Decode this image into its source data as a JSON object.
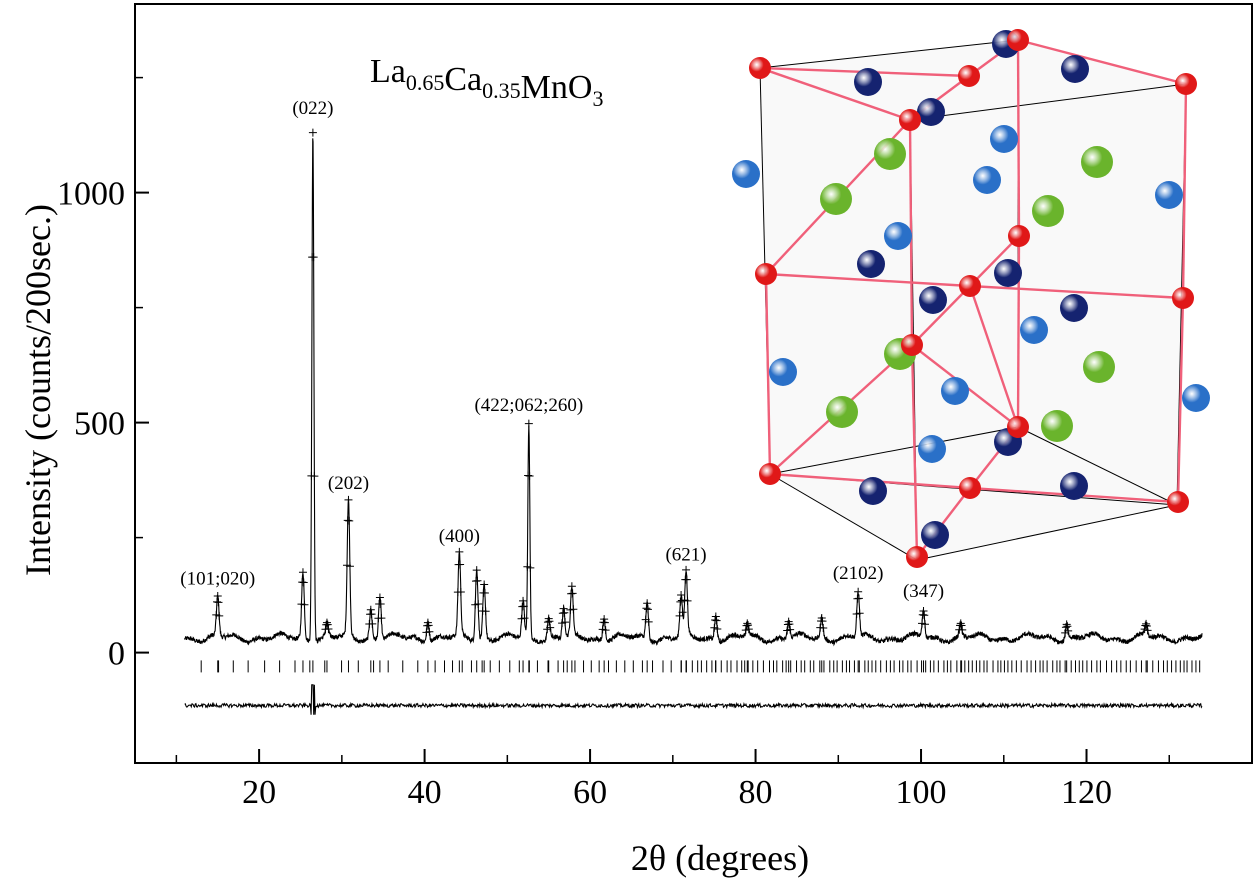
{
  "chart_data": {
    "type": "line",
    "title": "",
    "compound": {
      "parts": [
        {
          "text": "La",
          "sub": "0.65"
        },
        {
          "text": "Ca",
          "sub": "0.35"
        },
        {
          "text": "MnO",
          "sub": "3"
        }
      ]
    },
    "xlabel": "2θ (degrees)",
    "ylabel": "Intensity (counts/200sec.)",
    "xlim": [
      5,
      140
    ],
    "ylim": [
      -240,
      1410
    ],
    "xticks": [
      20,
      40,
      60,
      80,
      100,
      120
    ],
    "yticks": [
      0,
      500,
      1000
    ],
    "x_range": [
      11,
      134
    ],
    "background_level": 32,
    "peaks": [
      {
        "x": 15.0,
        "y": 118,
        "label": "(101;020)"
      },
      {
        "x": 25.3,
        "y": 175
      },
      {
        "x": 26.5,
        "y": 1140,
        "label": "(022)"
      },
      {
        "x": 28.2,
        "y": 60
      },
      {
        "x": 30.8,
        "y": 325,
        "label": "(202)"
      },
      {
        "x": 33.5,
        "y": 95
      },
      {
        "x": 34.6,
        "y": 125
      },
      {
        "x": 40.4,
        "y": 75
      },
      {
        "x": 44.2,
        "y": 210,
        "label": "(400)"
      },
      {
        "x": 46.3,
        "y": 185
      },
      {
        "x": 47.2,
        "y": 150
      },
      {
        "x": 51.9,
        "y": 110
      },
      {
        "x": 52.6,
        "y": 495,
        "label": "(422;062;260)"
      },
      {
        "x": 55.0,
        "y": 75
      },
      {
        "x": 56.8,
        "y": 95
      },
      {
        "x": 57.8,
        "y": 135
      },
      {
        "x": 61.7,
        "y": 80
      },
      {
        "x": 66.9,
        "y": 110
      },
      {
        "x": 71.0,
        "y": 120
      },
      {
        "x": 71.6,
        "y": 170,
        "label": "(621)"
      },
      {
        "x": 75.2,
        "y": 85
      },
      {
        "x": 79.0,
        "y": 60
      },
      {
        "x": 84.0,
        "y": 70
      },
      {
        "x": 88.0,
        "y": 75
      },
      {
        "x": 92.4,
        "y": 130,
        "label": "(2102)"
      },
      {
        "x": 100.3,
        "y": 90,
        "label": "(347)"
      },
      {
        "x": 104.8,
        "y": 60
      },
      {
        "x": 117.6,
        "y": 65
      },
      {
        "x": 127.2,
        "y": 58
      }
    ],
    "difference_curve": {
      "offset": -115,
      "spikes": [
        {
          "x": 26.5,
          "min": -135,
          "max": -70
        }
      ]
    },
    "reflection_marks_offset": -30,
    "legend": "none",
    "grid": false,
    "inset": {
      "type": "crystal-structure",
      "atom_colors": {
        "bond_atom": "#e01818",
        "dark_blue": "#152370",
        "light_blue": "#2a70c8",
        "green": "#6ab42c",
        "bond": "#f0607a"
      }
    }
  }
}
